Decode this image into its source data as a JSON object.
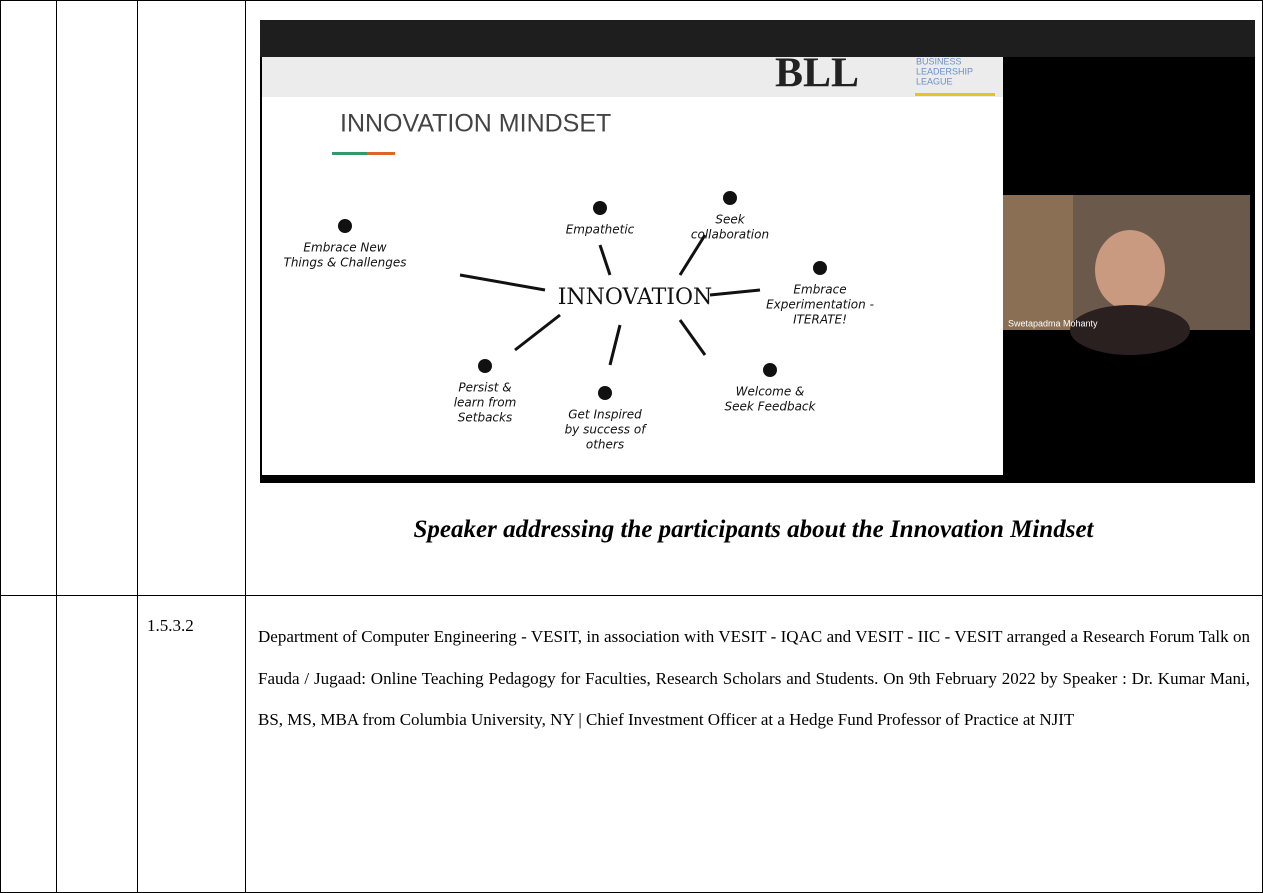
{
  "figure": {
    "slide": {
      "title": "INNOVATION MINDSET",
      "logo": "BLL",
      "logo_sub": [
        "BUSINESS",
        "LEADERSHIP",
        "LEAGUE"
      ],
      "center": "INNOVATION",
      "items": [
        [
          "Embrace New",
          "Things & Challenges"
        ],
        [
          "Empathetic"
        ],
        [
          "Seek",
          "collaboration"
        ],
        [
          "Embrace",
          "Experimentation -",
          "ITERATE!"
        ],
        [
          "Welcome &",
          "Seek Feedback"
        ],
        [
          "Get Inspired",
          "by success of",
          "others"
        ],
        [
          "Persist &",
          "learn from",
          "Setbacks"
        ]
      ]
    },
    "participant": "Swetapadma Mohanty",
    "caption": "Speaker addressing the participants about the Innovation Mindset"
  },
  "row2": {
    "number": "1.5.3.2",
    "text": "Department of Computer Engineering - VESIT, in association with VESIT - IQAC and VESIT - IIC - VESIT arranged a Research Forum Talk on Fauda / Jugaad: Online Teaching Pedagogy for Faculties, Research Scholars and Students. On  9th February 2022 by Speaker : Dr. Kumar Mani, BS, MS, MBA from Columbia University, NY | Chief Investment Officer at a Hedge Fund Professor of Practice at NJIT"
  }
}
